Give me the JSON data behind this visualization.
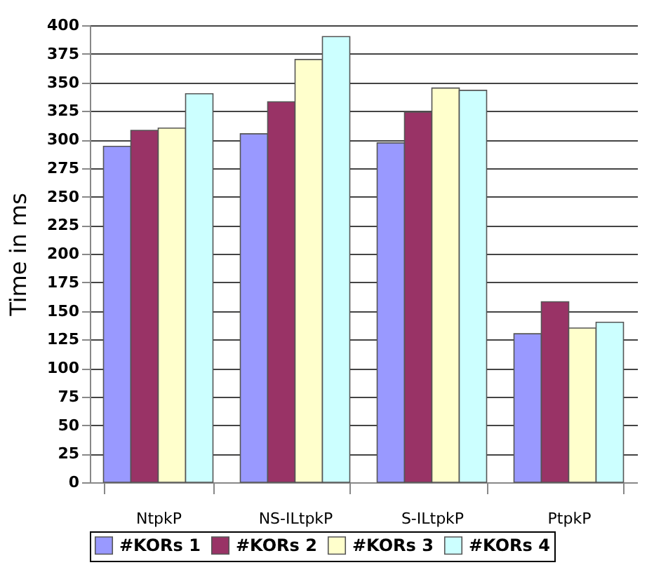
{
  "chart_data": {
    "type": "bar",
    "ylabel": "Time in ms",
    "categories": [
      "NtpkP",
      "NS-ILtpkP",
      "S-ILtpkP",
      "PtpkP"
    ],
    "series": [
      {
        "name": "#KORs 1",
        "color": "#9999ff",
        "values": [
          294,
          305,
          297,
          130
        ]
      },
      {
        "name": "#KORs 2",
        "color": "#993366",
        "values": [
          308,
          333,
          324,
          158
        ]
      },
      {
        "name": "#KORs 3",
        "color": "#ffffcc",
        "values": [
          310,
          370,
          345,
          135
        ]
      },
      {
        "name": "#KORs 4",
        "color": "#ccffff",
        "values": [
          340,
          390,
          343,
          140
        ]
      }
    ],
    "ylim": [
      0,
      400
    ],
    "yticks": [
      0,
      25,
      50,
      75,
      100,
      125,
      150,
      175,
      200,
      225,
      250,
      275,
      300,
      325,
      350,
      375,
      400
    ],
    "grid": "y",
    "legend": "bottom"
  }
}
